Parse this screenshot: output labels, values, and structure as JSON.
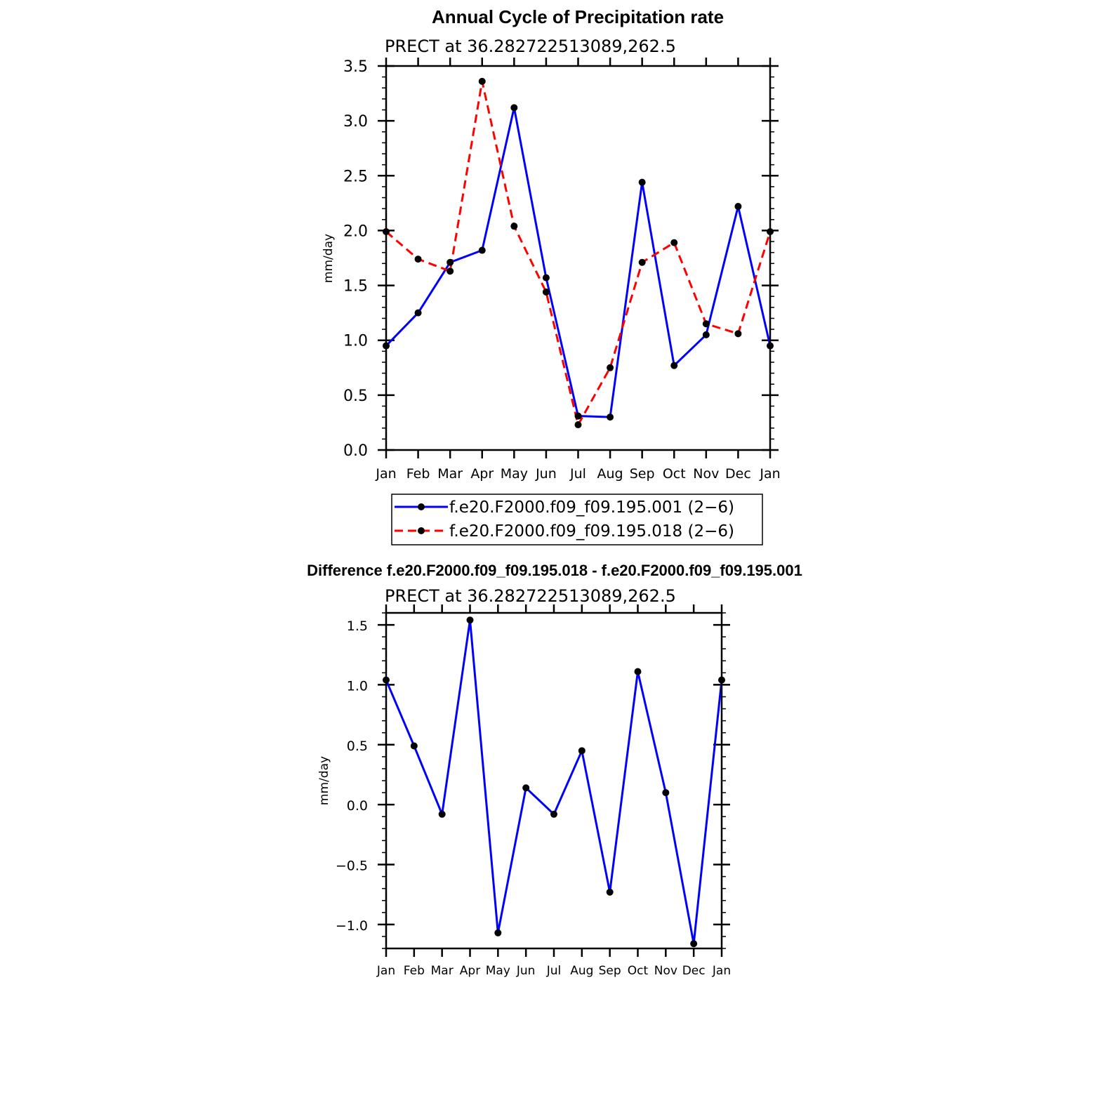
{
  "chart_data": [
    {
      "type": "line",
      "title": "Annual Cycle of Precipitation rate",
      "subtitle": "PRECT at 36.282722513089,262.5",
      "xlabel": "",
      "ylabel": "mm/day",
      "categories": [
        "Jan",
        "Feb",
        "Mar",
        "Apr",
        "May",
        "Jun",
        "Jul",
        "Aug",
        "Sep",
        "Oct",
        "Nov",
        "Dec",
        "Jan"
      ],
      "ylim": [
        0,
        3.5
      ],
      "yticks": [
        "0.0",
        "0.5",
        "1.0",
        "1.5",
        "2.0",
        "2.5",
        "3.0",
        "3.5"
      ],
      "series": [
        {
          "name": "f.e20.F2000.f09_f09.195.001 (2−6)",
          "color": "#0000ff",
          "dash": "solid",
          "values": [
            0.95,
            1.25,
            1.71,
            1.82,
            3.12,
            1.57,
            0.31,
            0.3,
            2.44,
            0.77,
            1.05,
            2.22,
            0.95
          ]
        },
        {
          "name": "f.e20.F2000.f09_f09.195.018 (2−6)",
          "color": "#ff0000",
          "dash": "dashed",
          "values": [
            1.99,
            1.74,
            1.63,
            3.36,
            2.04,
            1.44,
            0.23,
            0.75,
            1.71,
            1.89,
            1.15,
            1.06,
            1.99
          ]
        }
      ],
      "legend": "bottom"
    },
    {
      "type": "line",
      "title": "Difference f.e20.F2000.f09_f09.195.018 - f.e20.F2000.f09_f09.195.001",
      "subtitle": "PRECT at 36.282722513089,262.5",
      "xlabel": "",
      "ylabel": "mm/day",
      "categories": [
        "Jan",
        "Feb",
        "Mar",
        "Apr",
        "May",
        "Jun",
        "Jul",
        "Aug",
        "Sep",
        "Oct",
        "Nov",
        "Dec",
        "Jan"
      ],
      "ylim": [
        -1.2,
        1.6
      ],
      "yticks": [
        "−1.0",
        "−0.5",
        "0.0",
        "0.5",
        "1.0",
        "1.5"
      ],
      "ytick_values": [
        -1.0,
        -0.5,
        0.0,
        0.5,
        1.0,
        1.5
      ],
      "series": [
        {
          "name": "difference",
          "color": "#0000ff",
          "dash": "solid",
          "values": [
            1.04,
            0.49,
            -0.08,
            1.54,
            -1.07,
            0.14,
            -0.08,
            0.45,
            -0.73,
            1.11,
            0.1,
            -1.16,
            1.04
          ]
        }
      ]
    }
  ]
}
